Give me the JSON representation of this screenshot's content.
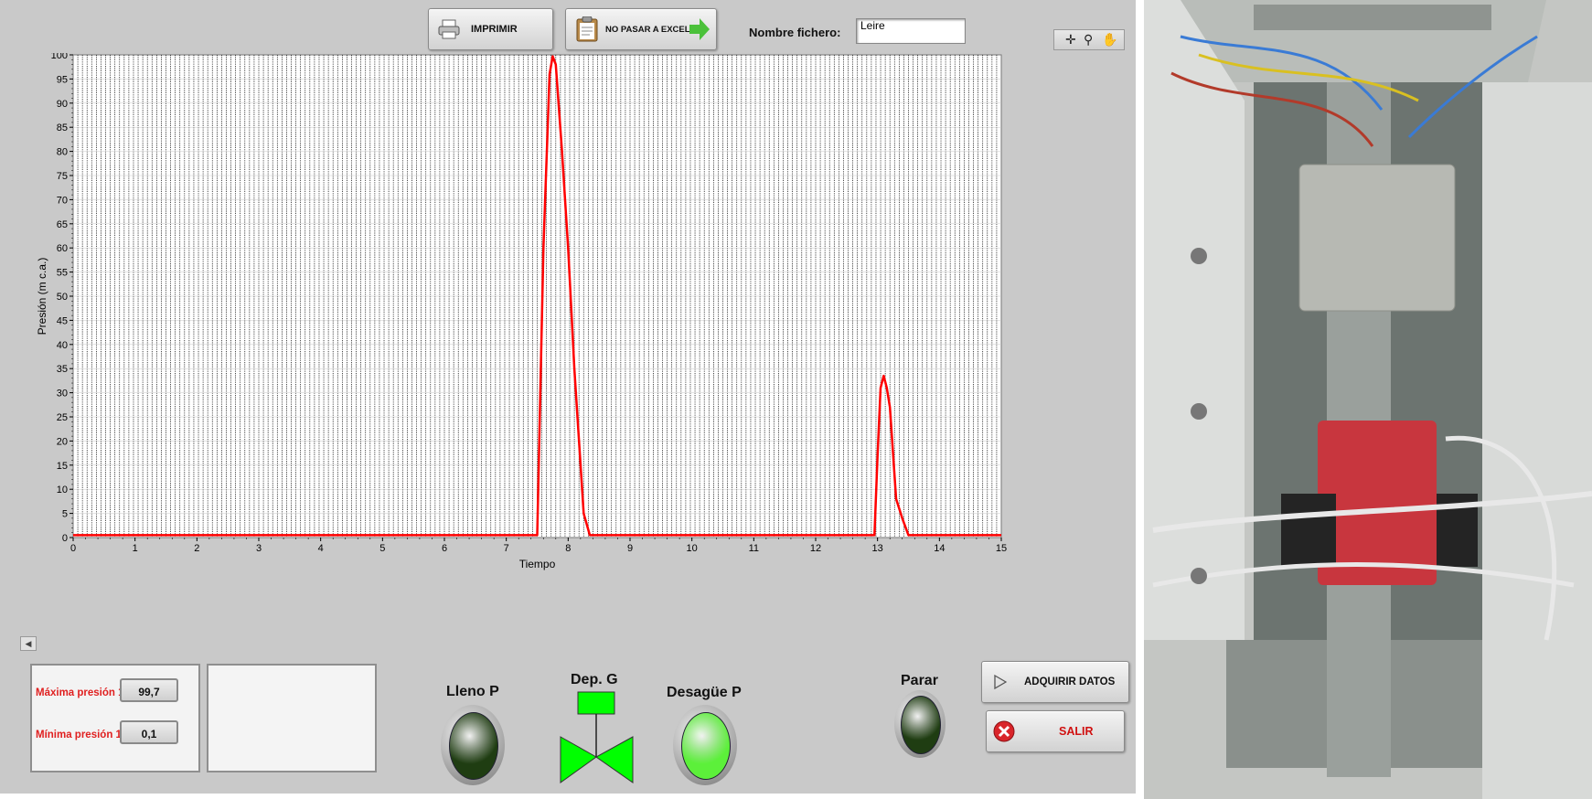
{
  "toolbar": {
    "print_label": "IMPRIMIR",
    "excel_label": "NO PASAR A EXCEL",
    "filename_label": "Nombre fichero:",
    "filename_value": "Leire"
  },
  "graph_tools": [
    "crosshair-tool-icon",
    "zoom-tool-icon",
    "hand-pan-tool-icon"
  ],
  "chart_data": {
    "type": "line",
    "xlabel": "Tiempo",
    "ylabel": "Presión (m c.a.)",
    "xlim": [
      0,
      15
    ],
    "ylim": [
      0,
      100
    ],
    "x_ticks": [
      0,
      1,
      2,
      3,
      4,
      5,
      6,
      7,
      8,
      9,
      10,
      11,
      12,
      13,
      14,
      15
    ],
    "y_ticks": [
      0,
      5,
      10,
      15,
      20,
      25,
      30,
      35,
      40,
      45,
      50,
      55,
      60,
      65,
      70,
      75,
      80,
      85,
      90,
      95,
      100
    ],
    "grid": true,
    "line_color": "#ff0000",
    "series": [
      {
        "x": [
          0,
          7.5,
          7.6,
          7.7,
          7.75,
          7.8,
          7.9,
          8.0,
          8.1,
          8.2,
          8.25,
          8.35,
          12.95,
          13.0,
          13.05,
          13.1,
          13.15,
          13.2,
          13.3,
          13.4,
          13.5,
          15
        ],
        "y": [
          0.5,
          0.5,
          60,
          96,
          99.7,
          98,
          80,
          60,
          35,
          15,
          5,
          0.5,
          0.5,
          17,
          31,
          33.5,
          31,
          27,
          8,
          4,
          0.5,
          0.5
        ]
      }
    ]
  },
  "stats": {
    "max_label": "Máxima presión 1",
    "max_value": "99,7",
    "min_label": "Mínima presión 1",
    "min_value": "0,1"
  },
  "indicators": {
    "lleno_label": "Lleno P",
    "lleno_color": "#1f3d12",
    "valve_label": "Dep. G",
    "valve_color": "#00ff00",
    "desague_label": "Desagüe P",
    "desague_color": "#5cf03a",
    "parar_label": "Parar",
    "parar_color": "#1f3d12"
  },
  "buttons": {
    "acquire_label": "ADQUIRIR DATOS",
    "exit_label": "SALIR"
  }
}
